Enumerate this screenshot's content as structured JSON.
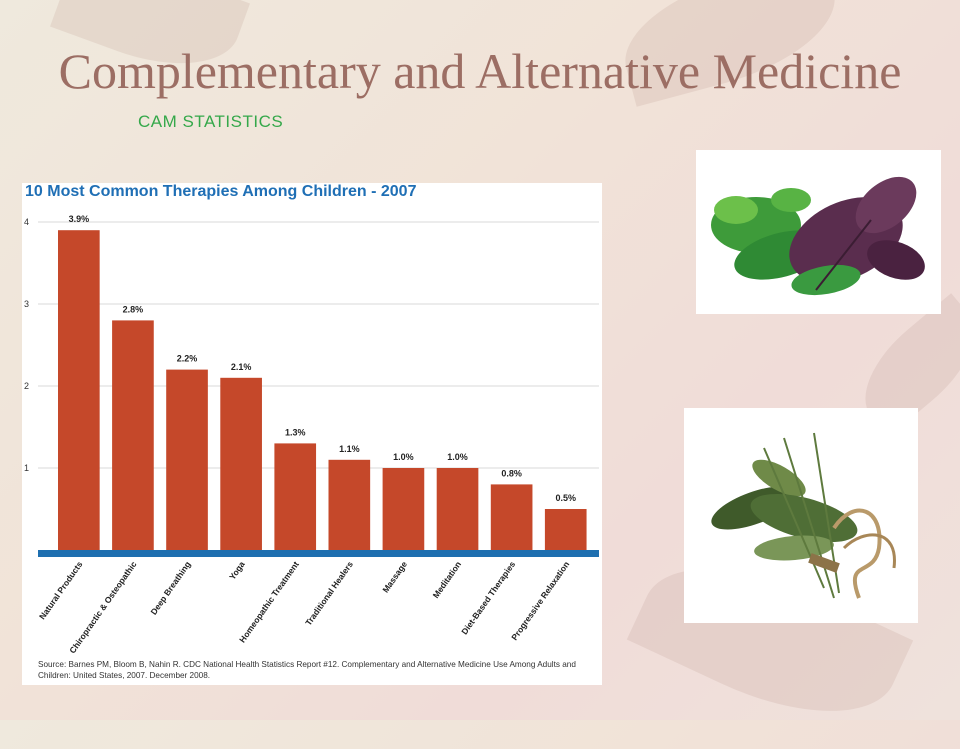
{
  "slide": {
    "title": "Complementary and Alternative Medicine",
    "subtitle": "CAM STATISTICS",
    "title_color": "#9c6e64",
    "subtitle_color": "#35a84a"
  },
  "images": [
    {
      "name": "herbs-basil-photo",
      "description_icon": "fresh-herbs"
    },
    {
      "name": "herb-bundle-photo",
      "description_icon": "dried-herb-bundle"
    }
  ],
  "chart_data": {
    "type": "bar",
    "title": "10 Most Common Therapies Among Children - 2007",
    "categories": [
      "Natural Products",
      "Chiropractic & Osteopathic",
      "Deep Breathing",
      "Yoga",
      "Homeopathic Treatment",
      "Traditional Healers",
      "Massage",
      "Meditation",
      "Diet-Based Therapies",
      "Progressive Relaxation"
    ],
    "values": [
      3.9,
      2.8,
      2.2,
      2.1,
      1.3,
      1.1,
      1.0,
      1.0,
      0.8,
      0.5
    ],
    "value_labels": [
      "3.9%",
      "2.8%",
      "2.2%",
      "2.1%",
      "1.3%",
      "1.1%",
      "1.0%",
      "1.0%",
      "0.8%",
      "0.5%"
    ],
    "yticks": [
      "1",
      "2",
      "3",
      "4"
    ],
    "ylim": [
      0,
      4
    ],
    "grid": true,
    "bar_color": "#c5482a",
    "baseline_color": "#1e6fb0",
    "title_color": "#1f6fb5",
    "source": "Source: Barnes PM, Bloom B, Nahin R. CDC National Health Statistics Report #12. Complementary and Alternative Medicine Use Among Adults and Children: United States, 2007. December 2008."
  }
}
